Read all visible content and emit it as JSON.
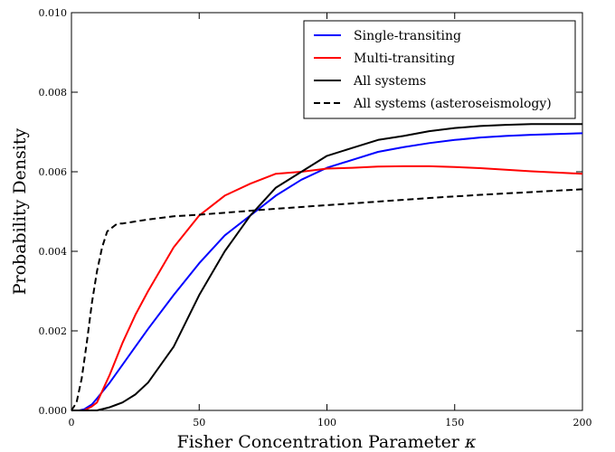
{
  "chart_data": {
    "type": "line",
    "xlabel": "Fisher Concentration Parameter",
    "xlabel_symbol": "κ",
    "ylabel": "Probability Density",
    "xlim": [
      0,
      200
    ],
    "ylim": [
      0,
      0.01
    ],
    "x_ticks": [
      "0",
      "50",
      "100",
      "150",
      "200"
    ],
    "y_ticks": [
      "0.000",
      "0.002",
      "0.004",
      "0.006",
      "0.008",
      "0.010"
    ],
    "grid": false,
    "legend_position": "top-right",
    "series": [
      {
        "name": "Single-transiting",
        "color": "#0000ff",
        "dash": "solid",
        "x": [
          0,
          3,
          5,
          8,
          10,
          15,
          20,
          25,
          30,
          40,
          50,
          60,
          70,
          80,
          90,
          100,
          110,
          120,
          130,
          140,
          150,
          160,
          170,
          180,
          190,
          200
        ],
        "y": [
          0,
          0,
          3e-05,
          0.00015,
          0.0003,
          0.0007,
          0.00115,
          0.0016,
          0.00205,
          0.0029,
          0.0037,
          0.0044,
          0.0049,
          0.0054,
          0.0058,
          0.0061,
          0.0063,
          0.0065,
          0.00662,
          0.00672,
          0.0068,
          0.00686,
          0.0069,
          0.00693,
          0.00695,
          0.00697
        ]
      },
      {
        "name": "Multi-transiting",
        "color": "#ff0000",
        "dash": "solid",
        "x": [
          0,
          5,
          8,
          10,
          15,
          20,
          25,
          30,
          40,
          50,
          60,
          70,
          80,
          90,
          100,
          110,
          120,
          130,
          140,
          150,
          160,
          170,
          180,
          190,
          200
        ],
        "y": [
          0,
          0,
          0.0001,
          0.0002,
          0.0009,
          0.0017,
          0.0024,
          0.003,
          0.0041,
          0.0049,
          0.0054,
          0.0057,
          0.00595,
          0.006,
          0.00608,
          0.0061,
          0.00613,
          0.00614,
          0.00614,
          0.00612,
          0.00609,
          0.00605,
          0.00601,
          0.00598,
          0.00595
        ]
      },
      {
        "name": "All systems",
        "color": "#000000",
        "dash": "solid",
        "x": [
          0,
          10,
          15,
          20,
          25,
          30,
          40,
          50,
          60,
          70,
          80,
          90,
          100,
          110,
          120,
          130,
          140,
          150,
          160,
          170,
          180,
          190,
          200
        ],
        "y": [
          0,
          0,
          8e-05,
          0.0002,
          0.0004,
          0.0007,
          0.0016,
          0.0029,
          0.004,
          0.0049,
          0.0056,
          0.006,
          0.0064,
          0.0066,
          0.0068,
          0.0069,
          0.00702,
          0.0071,
          0.00715,
          0.00718,
          0.0072,
          0.0072,
          0.0072
        ]
      },
      {
        "name": "All systems (asteroseismology)",
        "color": "#000000",
        "dash": "dashed",
        "x": [
          0,
          2,
          4,
          6,
          8,
          10,
          12,
          14,
          16,
          18,
          20,
          30,
          40,
          50,
          60,
          80,
          100,
          120,
          140,
          160,
          180,
          200
        ],
        "y": [
          0,
          0.0002,
          0.0008,
          0.0017,
          0.0027,
          0.0035,
          0.0041,
          0.0045,
          0.0046,
          0.0047,
          0.0047,
          0.0048,
          0.00488,
          0.00492,
          0.00497,
          0.00507,
          0.00516,
          0.00525,
          0.00534,
          0.00542,
          0.00549,
          0.00556
        ]
      }
    ]
  }
}
